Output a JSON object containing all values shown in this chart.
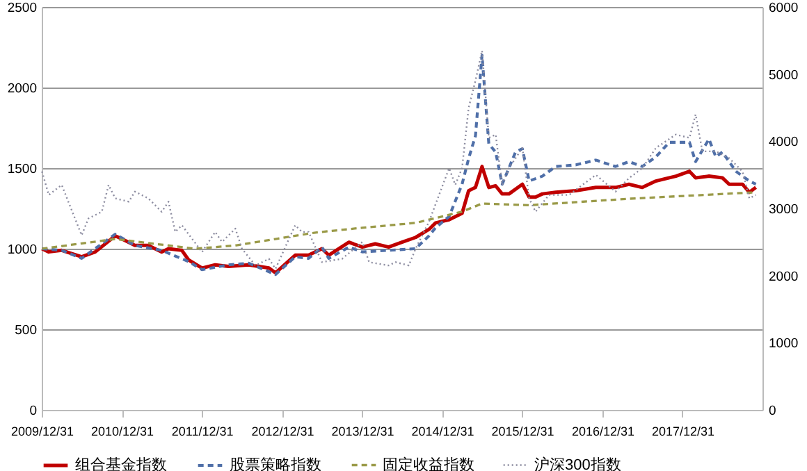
{
  "chart_data": {
    "type": "line",
    "xlim": [
      "2009-12-31",
      "2018-12-31"
    ],
    "xticks": [
      {
        "value": "2009-12-31",
        "label": "2009/12/31"
      },
      {
        "value": "2010-12-31",
        "label": "2010/12/31"
      },
      {
        "value": "2011-12-31",
        "label": "2011/12/31"
      },
      {
        "value": "2012-12-31",
        "label": "2012/12/31"
      },
      {
        "value": "2013-12-31",
        "label": "2013/12/31"
      },
      {
        "value": "2014-12-31",
        "label": "2014/12/31"
      },
      {
        "value": "2015-12-31",
        "label": "2015/12/31"
      },
      {
        "value": "2016-12-31",
        "label": "2016/12/31"
      },
      {
        "value": "2017-12-31",
        "label": "2017/12/31"
      }
    ],
    "ylim": [
      0,
      2500
    ],
    "yticks": [
      0,
      500,
      1000,
      1500,
      2000,
      2500
    ],
    "y2lim": [
      0,
      6000
    ],
    "y2ticks": [
      0,
      1000,
      2000,
      3000,
      4000,
      5000,
      6000
    ],
    "grid": "y",
    "legend": "bottom",
    "marker": "none",
    "series": [
      {
        "name": "组合基金指数",
        "color": "#c00000",
        "line_style": "solid",
        "x": [
          "2010-01",
          "2010-02",
          "2010-04",
          "2010-07",
          "2010-09",
          "2010-12",
          "2011-01",
          "2011-03",
          "2011-05",
          "2011-07",
          "2011-08",
          "2011-10",
          "2011-11",
          "2012-01",
          "2012-03",
          "2012-05",
          "2012-08",
          "2012-11",
          "2012-12",
          "2013-03",
          "2013-05",
          "2013-07",
          "2013-08",
          "2013-11",
          "2014-01",
          "2014-03",
          "2014-05",
          "2014-07",
          "2014-09",
          "2014-11",
          "2014-12",
          "2015-02",
          "2015-04",
          "2015-05",
          "2015-06",
          "2015-07",
          "2015-08",
          "2015-09",
          "2015-10",
          "2015-11",
          "2016-01",
          "2016-02",
          "2016-03",
          "2016-04",
          "2016-06",
          "2016-09",
          "2016-12",
          "2017-03",
          "2017-05",
          "2017-07",
          "2017-09",
          "2017-12",
          "2018-02",
          "2018-03",
          "2018-05",
          "2018-07",
          "2018-08",
          "2018-10",
          "2018-11",
          "2018-12"
        ],
        "values": [
          1000,
          980,
          990,
          950,
          980,
          1080,
          1060,
          1020,
          1020,
          980,
          1000,
          990,
          930,
          880,
          900,
          890,
          900,
          880,
          850,
          960,
          960,
          1000,
          960,
          1040,
          1010,
          1030,
          1010,
          1040,
          1070,
          1120,
          1160,
          1180,
          1220,
          1360,
          1380,
          1510,
          1380,
          1390,
          1340,
          1340,
          1400,
          1320,
          1320,
          1340,
          1350,
          1360,
          1380,
          1380,
          1400,
          1380,
          1420,
          1450,
          1480,
          1440,
          1450,
          1440,
          1400,
          1400,
          1350,
          1380
        ]
      },
      {
        "name": "股票策略指数",
        "color": "#4f6fa8",
        "line_style": "dashed",
        "x": [
          "2010-01",
          "2010-04",
          "2010-07",
          "2010-12",
          "2011-03",
          "2011-07",
          "2011-11",
          "2012-01",
          "2012-05",
          "2012-08",
          "2012-12",
          "2013-03",
          "2013-05",
          "2013-07",
          "2013-08",
          "2013-11",
          "2014-01",
          "2014-05",
          "2014-09",
          "2014-11",
          "2014-12",
          "2015-02",
          "2015-04",
          "2015-05",
          "2015-06",
          "2015-07",
          "2015-08",
          "2015-09",
          "2015-10",
          "2015-12",
          "2016-01",
          "2016-02",
          "2016-04",
          "2016-06",
          "2016-09",
          "2016-12",
          "2017-03",
          "2017-05",
          "2017-07",
          "2017-09",
          "2017-11",
          "2018-02",
          "2018-03",
          "2018-05",
          "2018-06",
          "2018-07",
          "2018-09",
          "2018-11",
          "2018-12"
        ],
        "values": [
          1000,
          990,
          940,
          1090,
          1020,
          990,
          920,
          870,
          900,
          910,
          840,
          950,
          940,
          1010,
          940,
          1010,
          980,
          990,
          1000,
          1080,
          1130,
          1200,
          1400,
          1560,
          1700,
          2200,
          1650,
          1600,
          1400,
          1600,
          1620,
          1420,
          1450,
          1510,
          1520,
          1550,
          1510,
          1540,
          1510,
          1570,
          1660,
          1660,
          1540,
          1680,
          1570,
          1600,
          1480,
          1420,
          1400
        ]
      },
      {
        "name": "固定收益指数",
        "color": "#9a9a48",
        "line_style": "dashed",
        "x": [
          "2010-01",
          "2010-12",
          "2011-06",
          "2011-12",
          "2012-06",
          "2012-12",
          "2013-06",
          "2014-01",
          "2014-09",
          "2015-01",
          "2015-04",
          "2015-07",
          "2016-02",
          "2017-05",
          "2018-12"
        ],
        "values": [
          1000,
          1060,
          1030,
          1000,
          1020,
          1060,
          1100,
          1130,
          1160,
          1200,
          1230,
          1280,
          1270,
          1310,
          1350
        ]
      },
      {
        "name": "沪深300指数",
        "color": "#8c8ca0",
        "line_style": "dotted",
        "axis": "y2",
        "x": [
          "2010-01",
          "2010-02",
          "2010-04",
          "2010-07",
          "2010-08",
          "2010-10",
          "2010-11",
          "2010-12",
          "2011-02",
          "2011-03",
          "2011-05",
          "2011-07",
          "2011-08",
          "2011-09",
          "2011-10",
          "2012-01",
          "2012-03",
          "2012-04",
          "2012-06",
          "2012-07",
          "2012-09",
          "2012-11",
          "2012-12",
          "2013-03",
          "2013-04",
          "2013-05",
          "2013-07",
          "2013-10",
          "2014-01",
          "2014-02",
          "2014-05",
          "2014-06",
          "2014-08",
          "2014-09",
          "2014-11",
          "2015-02",
          "2015-03",
          "2015-04",
          "2015-05",
          "2015-06",
          "2015-07",
          "2015-08",
          "2015-09",
          "2015-10",
          "2015-11",
          "2016-01",
          "2016-02",
          "2016-03",
          "2016-05",
          "2016-08",
          "2016-10",
          "2016-12",
          "2017-03",
          "2017-05",
          "2017-07",
          "2017-09",
          "2017-12",
          "2018-02",
          "2018-03",
          "2018-04",
          "2018-06",
          "2018-08",
          "2018-10",
          "2018-11",
          "2018-12"
        ],
        "values": [
          3550,
          3200,
          3350,
          2600,
          2850,
          2950,
          3350,
          3150,
          3100,
          3250,
          3150,
          2950,
          3100,
          2650,
          2750,
          2350,
          2650,
          2500,
          2700,
          2400,
          2150,
          2250,
          2100,
          2750,
          2650,
          2650,
          2200,
          2250,
          2500,
          2200,
          2150,
          2200,
          2150,
          2400,
          2800,
          3600,
          3350,
          3600,
          4500,
          4900,
          5350,
          4050,
          4100,
          3350,
          3600,
          3900,
          3150,
          2950,
          3200,
          3200,
          3350,
          3500,
          3250,
          3450,
          3600,
          3900,
          4100,
          4050,
          4400,
          3850,
          3850,
          3750,
          3550,
          3150,
          3200
        ]
      }
    ]
  }
}
